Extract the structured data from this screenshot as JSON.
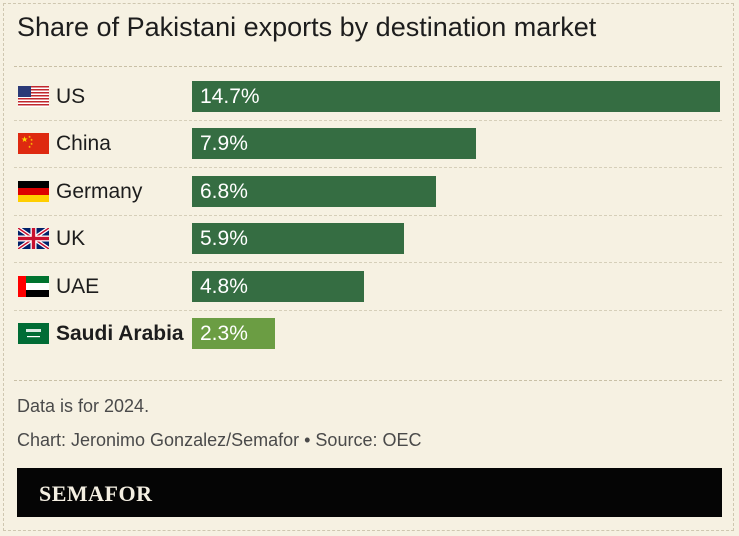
{
  "title": "Share of Pakistani exports by destination market",
  "chart_data": {
    "type": "bar",
    "orientation": "horizontal",
    "title": "Share of Pakistani exports by destination market",
    "categories": [
      "US",
      "China",
      "Germany",
      "UK",
      "UAE",
      "Saudi Arabia"
    ],
    "values": [
      14.7,
      7.9,
      6.8,
      5.9,
      4.8,
      2.3
    ],
    "value_labels": [
      "14.7%",
      "7.9%",
      "6.8%",
      "5.9%",
      "4.8%",
      "2.3%"
    ],
    "unit": "%",
    "highlighted": "Saudi Arabia",
    "bar_color": "#356d42",
    "highlight_color": "#6b9d43",
    "grid": false,
    "legend": "none"
  },
  "flags": [
    "us-flag-icon",
    "china-flag-icon",
    "germany-flag-icon",
    "uk-flag-icon",
    "uae-flag-icon",
    "saudi-arabia-flag-icon"
  ],
  "notes": {
    "data_note": "Data is for 2024.",
    "credit": "Chart: Jeronimo Gonzalez/Semafor • Source: OEC"
  },
  "footer": {
    "brand": "SEMAFOR"
  },
  "colors": {
    "background": "#f6f1e2",
    "footer_background": "#050505"
  }
}
